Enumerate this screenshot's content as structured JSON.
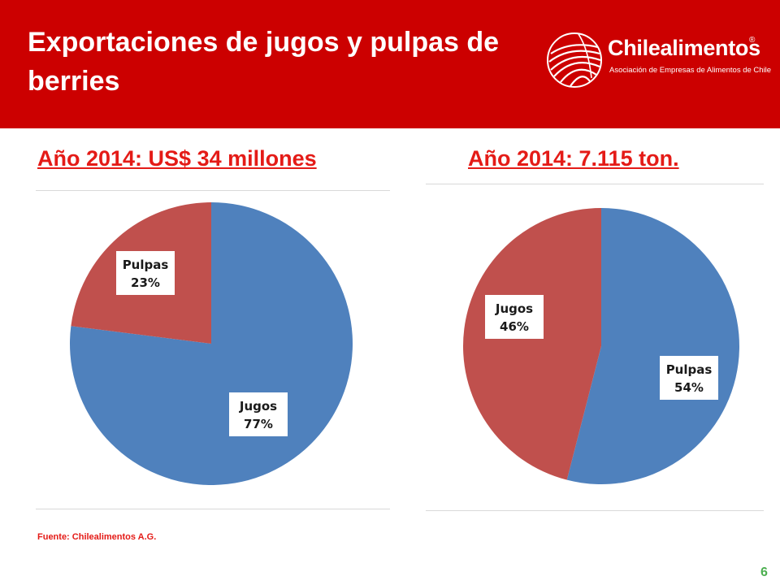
{
  "header": {
    "title": "Exportaciones de jugos y pulpas de berries",
    "logo_name": "Chilealimentos",
    "logo_reg": "®",
    "logo_tagline": "Asociación de Empresas de Alimentos de Chile"
  },
  "colors": {
    "header_bg": "#cc0000",
    "title_red": "#e41b17",
    "series_jugos": "#4f81bd",
    "series_pulpas": "#c0504d",
    "page_number": "#4caf50"
  },
  "chart_data": [
    {
      "type": "pie",
      "title": "Año 2014: US$ 34 millones",
      "slices": [
        {
          "label": "Jugos",
          "pct_label": "77%",
          "value": 77,
          "color": "#4f81bd"
        },
        {
          "label": "Pulpas",
          "pct_label": "23%",
          "value": 23,
          "color": "#c0504d"
        }
      ]
    },
    {
      "type": "pie",
      "title": "Año 2014: 7.115 ton.",
      "slices": [
        {
          "label": "Pulpas",
          "pct_label": "54%",
          "value": 54,
          "color": "#4f81bd"
        },
        {
          "label": "Jugos",
          "pct_label": "46%",
          "value": 46,
          "color": "#c0504d"
        }
      ]
    }
  ],
  "footer": {
    "source": "Fuente: Chilealimentos A.G.",
    "page_number": "6"
  }
}
